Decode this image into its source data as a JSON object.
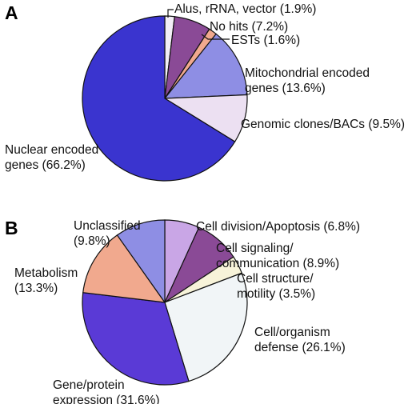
{
  "chart_data": [
    {
      "panel": "A",
      "type": "pie",
      "slices": [
        {
          "label_lines": [
            "Alus, rRNA,  vector (1.9%)"
          ],
          "value": 1.9,
          "color": "#f2eef6"
        },
        {
          "label_lines": [
            "No hits (7.2%)"
          ],
          "value": 7.2,
          "color": "#8a4a96"
        },
        {
          "label_lines": [
            "ESTs (1.6%)"
          ],
          "value": 1.6,
          "color": "#f1a98e"
        },
        {
          "label_lines": [
            "Mitochondrial encoded",
            "genes (13.6%)"
          ],
          "value": 13.6,
          "color": "#8e8ee4"
        },
        {
          "label_lines": [
            "Genomic clones/BACs (9.5%)"
          ],
          "value": 9.5,
          "color": "#ece0f2"
        },
        {
          "label_lines": [
            "Nuclear encoded",
            "genes (66.2%)"
          ],
          "value": 66.2,
          "color": "#3a34cf"
        }
      ]
    },
    {
      "panel": "B",
      "type": "pie",
      "slices": [
        {
          "label_lines": [
            "Cell division/Apoptosis (6.8%)"
          ],
          "value": 6.8,
          "color": "#c9a6e6"
        },
        {
          "label_lines": [
            "Cell signaling/",
            "communication (8.9%)"
          ],
          "value": 8.9,
          "color": "#8a4a96"
        },
        {
          "label_lines": [
            "Cell structure/",
            "motility (3.5%)"
          ],
          "value": 3.5,
          "color": "#f7f3d9"
        },
        {
          "label_lines": [
            "Cell/organism",
            "defense (26.1%)"
          ],
          "value": 26.1,
          "color": "#f1f5f7"
        },
        {
          "label_lines": [
            "Gene/protein",
            "expression (31.6%)"
          ],
          "value": 31.6,
          "color": "#5a3ad6"
        },
        {
          "label_lines": [
            "Metabolism",
            "(13.3%)"
          ],
          "value": 13.3,
          "color": "#f1a98e"
        },
        {
          "label_lines": [
            "Unclassified",
            "(9.8%)"
          ],
          "value": 9.8,
          "color": "#8e8ee4"
        }
      ]
    }
  ]
}
